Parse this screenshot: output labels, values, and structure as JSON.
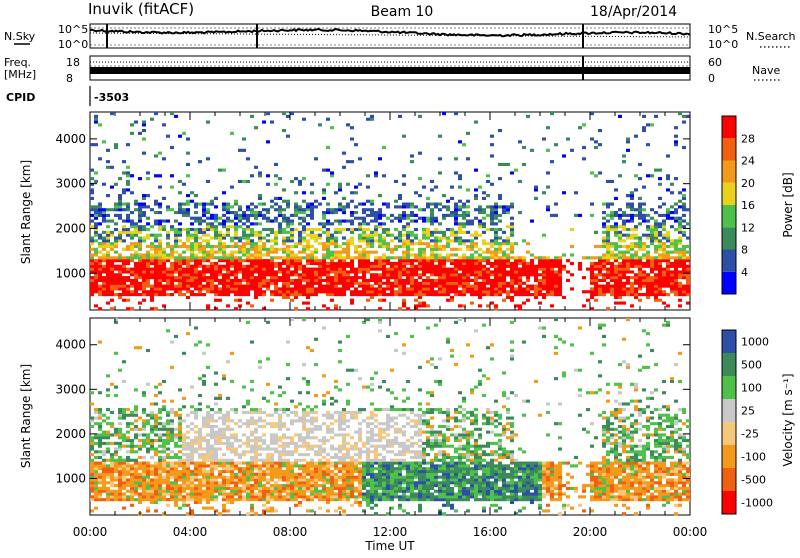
{
  "header": {
    "title": "Inuvik (fitACF)",
    "beam": "Beam 10",
    "date": "18/Apr/2014",
    "cpid_label": "CPID",
    "cpid_value": "-3503"
  },
  "top_panels": {
    "nsky": {
      "label": "N.Sky",
      "ticks_left": [
        "10^5",
        "10^0"
      ],
      "right_label": "N.Search",
      "ticks_right": [
        "10^5",
        "10^0"
      ]
    },
    "freq": {
      "label_line1": "Freq.",
      "label_line2": "[MHz]",
      "ticks_left": [
        "18",
        "8"
      ],
      "right_label": "Nave",
      "ticks_right": [
        "60",
        "0"
      ]
    }
  },
  "colors": {
    "power_scale": [
      "#0000ff",
      "#2d4fa7",
      "#3a8a5a",
      "#4fc14a",
      "#e8d21e",
      "#f39a1a",
      "#f06010",
      "#ff0000"
    ],
    "velocity_scale": [
      "#ff0000",
      "#f06010",
      "#f39a1a",
      "#f7c77a",
      "#c8c8c8",
      "#4fc14a",
      "#3a8a5a",
      "#2d4fa7"
    ]
  },
  "chart_data": [
    {
      "type": "heatmap",
      "title": "",
      "xlabel": "Time UT",
      "ylabel": "Slant Range [km]",
      "x_ticks": [
        "00:00",
        "04:00",
        "08:00",
        "12:00",
        "16:00",
        "20:00",
        "00:00"
      ],
      "y_ticks": [
        "1000",
        "2000",
        "3000",
        "4000"
      ],
      "ylim": [
        180,
        4600
      ],
      "colorbar_label": "Power [dB]",
      "colorbar_ticks": [
        "4",
        "8",
        "12",
        "16",
        "20",
        "24",
        "28"
      ],
      "range": [
        0,
        32
      ]
    },
    {
      "type": "heatmap",
      "title": "",
      "xlabel": "Time UT",
      "ylabel": "Slant Range [km]",
      "x_ticks": [
        "00:00",
        "04:00",
        "08:00",
        "12:00",
        "16:00",
        "20:00",
        "00:00"
      ],
      "y_ticks": [
        "1000",
        "2000",
        "3000",
        "4000"
      ],
      "ylim": [
        180,
        4600
      ],
      "colorbar_label": "Velocity [m s⁻¹]",
      "colorbar_ticks": [
        "1000",
        "500",
        "100",
        "25",
        "-25",
        "-100",
        "-500",
        "-1000"
      ]
    }
  ]
}
